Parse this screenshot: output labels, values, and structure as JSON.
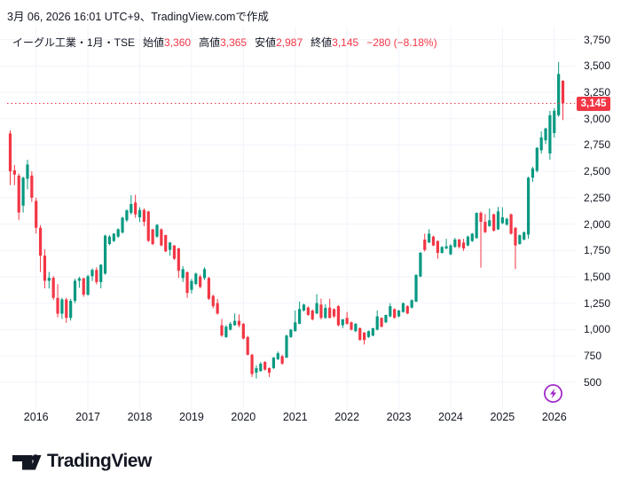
{
  "header": {
    "created_line": "3月 06, 2026 16:01 UTC+9、TradingView.comで作成"
  },
  "legend": {
    "symbol_line": "イーグル工業・1月・TSE",
    "items": [
      {
        "label": "始値",
        "value": "3,360"
      },
      {
        "label": "高値",
        "value": "3,365"
      },
      {
        "label": "安値",
        "value": "2,987"
      },
      {
        "label": "終値",
        "value": "3,145"
      }
    ],
    "change": "−280 (−8.18%)"
  },
  "price_scale": {
    "ticks": [
      {
        "v": 3750,
        "label": "3,750"
      },
      {
        "v": 3500,
        "label": "3,500"
      },
      {
        "v": 3250,
        "label": "3,250"
      },
      {
        "v": 3000,
        "label": "3,000"
      },
      {
        "v": 2750,
        "label": "2,750"
      },
      {
        "v": 2500,
        "label": "2,500"
      },
      {
        "v": 2250,
        "label": "2,250"
      },
      {
        "v": 2000,
        "label": "2,000"
      },
      {
        "v": 1750,
        "label": "1,750"
      },
      {
        "v": 1500,
        "label": "1,500"
      },
      {
        "v": 1250,
        "label": "1,250"
      },
      {
        "v": 1000,
        "label": "1,000"
      },
      {
        "v": 750,
        "label": "750"
      },
      {
        "v": 500,
        "label": "500"
      }
    ],
    "last_price_label": "3,145"
  },
  "time_scale": {
    "years": [
      2016,
      2017,
      2018,
      2019,
      2020,
      2021,
      2022,
      2023,
      2024,
      2025,
      2026
    ]
  },
  "footer": {
    "logo_text": "TradingView"
  },
  "icons": {
    "flash": "lightning-bolt-badge"
  },
  "colors": {
    "up": "#089981",
    "down": "#F23645",
    "accent": "#F23645",
    "purple": "#A22BC8",
    "text": "#131722",
    "grid": "#F0F3FA"
  },
  "chart_data": {
    "type": "candlestick",
    "title": "イーグル工業・1月・TSE",
    "symbol": "イーグル工業",
    "interval": "1月",
    "exchange": "TSE",
    "open": 3360,
    "high": 3365,
    "low": 2987,
    "close": 3145,
    "change": -280,
    "change_pct": -8.18,
    "last_close_line": 3145,
    "y_axis": {
      "min": 500,
      "max": 3750,
      "step": 250
    },
    "x_axis": {
      "unit": "month",
      "start": "2015-07",
      "end": "2026-03"
    },
    "ohlc": [
      [
        "2015-07",
        2860,
        2890,
        2370,
        2500
      ],
      [
        "2015-08",
        2510,
        2560,
        2370,
        2470
      ],
      [
        "2015-09",
        2460,
        2480,
        2040,
        2110
      ],
      [
        "2015-10",
        2175,
        2450,
        2110,
        2440
      ],
      [
        "2015-11",
        2430,
        2610,
        2330,
        2565
      ],
      [
        "2015-12",
        2460,
        2500,
        2210,
        2250
      ],
      [
        "2016-01",
        2220,
        2250,
        1910,
        1965
      ],
      [
        "2016-02",
        1965,
        1990,
        1545,
        1700
      ],
      [
        "2016-03",
        1700,
        1760,
        1390,
        1462
      ],
      [
        "2016-04",
        1462,
        1545,
        1388,
        1490
      ],
      [
        "2016-05",
        1490,
        1505,
        1280,
        1300
      ],
      [
        "2016-06",
        1300,
        1430,
        1115,
        1150
      ],
      [
        "2016-07",
        1150,
        1300,
        1100,
        1285
      ],
      [
        "2016-08",
        1285,
        1300,
        1063,
        1110
      ],
      [
        "2016-09",
        1110,
        1290,
        1085,
        1272
      ],
      [
        "2016-10",
        1272,
        1480,
        1250,
        1462
      ],
      [
        "2016-11",
        1462,
        1500,
        1395,
        1485
      ],
      [
        "2016-12",
        1485,
        1492,
        1310,
        1330
      ],
      [
        "2017-01",
        1330,
        1520,
        1320,
        1505
      ],
      [
        "2017-02",
        1505,
        1580,
        1460,
        1565
      ],
      [
        "2017-03",
        1565,
        1590,
        1428,
        1450
      ],
      [
        "2017-04",
        1450,
        1620,
        1390,
        1614
      ],
      [
        "2017-05",
        1530,
        1900,
        1520,
        1890
      ],
      [
        "2017-06",
        1811,
        1895,
        1800,
        1881
      ],
      [
        "2017-07",
        1839,
        1915,
        1830,
        1909
      ],
      [
        "2017-08",
        1881,
        1960,
        1870,
        1951
      ],
      [
        "2017-09",
        1920,
        2070,
        1910,
        2060
      ],
      [
        "2017-10",
        2036,
        2140,
        2020,
        2130
      ],
      [
        "2017-11",
        2106,
        2275,
        2090,
        2190
      ],
      [
        "2017-12",
        2204,
        2278,
        2060,
        2092
      ],
      [
        "2018-01",
        2064,
        2160,
        2020,
        2134
      ],
      [
        "2018-02",
        2134,
        2150,
        1980,
        2022
      ],
      [
        "2018-03",
        2120,
        2125,
        1830,
        1840
      ],
      [
        "2018-04",
        1950,
        1955,
        1800,
        1811
      ],
      [
        "2018-05",
        1881,
        2000,
        1870,
        1993
      ],
      [
        "2018-06",
        1950,
        1960,
        1790,
        1797
      ],
      [
        "2018-07",
        1895,
        1900,
        1735,
        1741
      ],
      [
        "2018-08",
        1755,
        1830,
        1700,
        1825
      ],
      [
        "2018-09",
        1797,
        1800,
        1660,
        1671
      ],
      [
        "2018-10",
        1769,
        1775,
        1490,
        1558
      ],
      [
        "2018-11",
        1488,
        1600,
        1450,
        1572
      ],
      [
        "2018-12",
        1544,
        1550,
        1300,
        1347
      ],
      [
        "2019-01",
        1376,
        1480,
        1340,
        1460
      ],
      [
        "2019-02",
        1432,
        1540,
        1420,
        1530
      ],
      [
        "2019-03",
        1502,
        1520,
        1390,
        1404
      ],
      [
        "2019-04",
        1488,
        1590,
        1470,
        1572
      ],
      [
        "2019-05",
        1488,
        1500,
        1280,
        1291
      ],
      [
        "2019-06",
        1319,
        1330,
        1200,
        1221
      ],
      [
        "2019-07",
        1250,
        1290,
        1140,
        1151
      ],
      [
        "2019-08",
        1040,
        1100,
        930,
        942
      ],
      [
        "2019-09",
        928,
        1040,
        920,
        1026
      ],
      [
        "2019-10",
        998,
        1070,
        990,
        1054
      ],
      [
        "2019-11",
        1040,
        1152,
        1035,
        1082
      ],
      [
        "2019-12",
        1082,
        1143,
        1020,
        1040
      ],
      [
        "2020-01",
        1054,
        1060,
        905,
        914
      ],
      [
        "2020-02",
        928,
        940,
        755,
        760
      ],
      [
        "2020-03",
        760,
        770,
        549,
        577
      ],
      [
        "2020-04",
        591,
        660,
        535,
        633
      ],
      [
        "2020-05",
        605,
        690,
        600,
        675
      ],
      [
        "2020-06",
        691,
        700,
        610,
        619
      ],
      [
        "2020-07",
        633,
        640,
        549,
        591
      ],
      [
        "2020-08",
        633,
        740,
        625,
        732
      ],
      [
        "2020-09",
        718,
        790,
        710,
        774
      ],
      [
        "2020-10",
        746,
        760,
        665,
        676
      ],
      [
        "2020-11",
        732,
        950,
        730,
        942
      ],
      [
        "2020-12",
        928,
        1005,
        920,
        998
      ],
      [
        "2021-01",
        984,
        1180,
        980,
        1068
      ],
      [
        "2021-02",
        1054,
        1264,
        1050,
        1194
      ],
      [
        "2021-03",
        1180,
        1245,
        1170,
        1236
      ],
      [
        "2021-04",
        1208,
        1220,
        1130,
        1138
      ],
      [
        "2021-05",
        1180,
        1190,
        1085,
        1096
      ],
      [
        "2021-06",
        1152,
        1334,
        1145,
        1250
      ],
      [
        "2021-07",
        1236,
        1292,
        1095,
        1110
      ],
      [
        "2021-08",
        1110,
        1240,
        1100,
        1205
      ],
      [
        "2021-09",
        1207,
        1291,
        1105,
        1110
      ],
      [
        "2021-10",
        1193,
        1200,
        1110,
        1124
      ],
      [
        "2021-11",
        1221,
        1230,
        1030,
        1040
      ],
      [
        "2021-12",
        1040,
        1100,
        1012,
        1096
      ],
      [
        "2022-01",
        1110,
        1166,
        1045,
        1054
      ],
      [
        "2022-02",
        1068,
        1075,
        990,
        998
      ],
      [
        "2022-03",
        984,
        1060,
        975,
        1054
      ],
      [
        "2022-04",
        1012,
        1020,
        895,
        900
      ],
      [
        "2022-05",
        970,
        975,
        857,
        900
      ],
      [
        "2022-06",
        928,
        990,
        920,
        984
      ],
      [
        "2022-07",
        942,
        1015,
        935,
        1012
      ],
      [
        "2022-08",
        998,
        1180,
        990,
        1124
      ],
      [
        "2022-09",
        1110,
        1115,
        1020,
        1026
      ],
      [
        "2022-10",
        1068,
        1140,
        1060,
        1138
      ],
      [
        "2022-11",
        1124,
        1249,
        1115,
        1221
      ],
      [
        "2022-12",
        1193,
        1200,
        1105,
        1110
      ],
      [
        "2023-01",
        1124,
        1185,
        1115,
        1180
      ],
      [
        "2023-02",
        1166,
        1255,
        1160,
        1250
      ],
      [
        "2023-03",
        1221,
        1230,
        1145,
        1152
      ],
      [
        "2023-04",
        1207,
        1285,
        1200,
        1278
      ],
      [
        "2023-05",
        1264,
        1525,
        1260,
        1517
      ],
      [
        "2023-06",
        1503,
        1735,
        1495,
        1728
      ],
      [
        "2023-07",
        1853,
        1909,
        1740,
        1755
      ],
      [
        "2023-08",
        1825,
        1951,
        1820,
        1909
      ],
      [
        "2023-09",
        1881,
        1890,
        1790,
        1797
      ],
      [
        "2023-10",
        1839,
        1845,
        1671,
        1727
      ],
      [
        "2023-11",
        1727,
        1790,
        1720,
        1783
      ],
      [
        "2023-12",
        1769,
        1860,
        1760,
        1790
      ],
      [
        "2024-01",
        1713,
        1810,
        1705,
        1797
      ],
      [
        "2024-02",
        1783,
        1870,
        1775,
        1853
      ],
      [
        "2024-03",
        1853,
        1860,
        1770,
        1783
      ],
      [
        "2024-04",
        1825,
        1860,
        1745,
        1769
      ],
      [
        "2024-05",
        1797,
        1890,
        1790,
        1881
      ],
      [
        "2024-06",
        1839,
        1915,
        1830,
        1909
      ],
      [
        "2024-07",
        1867,
        2110,
        1860,
        2106
      ],
      [
        "2024-08",
        2106,
        2120,
        1586,
        2022
      ],
      [
        "2024-09",
        2022,
        2095,
        1915,
        1923
      ],
      [
        "2024-10",
        1981,
        2148,
        1975,
        2036
      ],
      [
        "2024-11",
        2092,
        2100,
        1930,
        1937
      ],
      [
        "2024-12",
        1950,
        2162,
        1945,
        2120
      ],
      [
        "2025-01",
        2008,
        2160,
        2000,
        2064
      ],
      [
        "2025-02",
        1994,
        2060,
        1985,
        2050
      ],
      [
        "2025-03",
        2092,
        2100,
        1900,
        1909
      ],
      [
        "2025-04",
        1965,
        1970,
        1573,
        1797
      ],
      [
        "2025-05",
        1811,
        1900,
        1805,
        1895
      ],
      [
        "2025-06",
        1853,
        1930,
        1845,
        1923
      ],
      [
        "2025-07",
        1900,
        2450,
        1860,
        2440
      ],
      [
        "2025-08",
        2440,
        2545,
        2400,
        2528
      ],
      [
        "2025-09",
        2505,
        2730,
        2490,
        2724
      ],
      [
        "2025-10",
        2700,
        2880,
        2670,
        2823
      ],
      [
        "2025-11",
        2795,
        2915,
        2760,
        2907
      ],
      [
        "2025-12",
        2670,
        3074,
        2611,
        3033
      ],
      [
        "2026-01",
        2864,
        3100,
        2820,
        3075
      ],
      [
        "2026-02",
        3033,
        3537,
        3018,
        3425
      ],
      [
        "2026-03",
        3360,
        3365,
        2987,
        3145
      ]
    ]
  }
}
